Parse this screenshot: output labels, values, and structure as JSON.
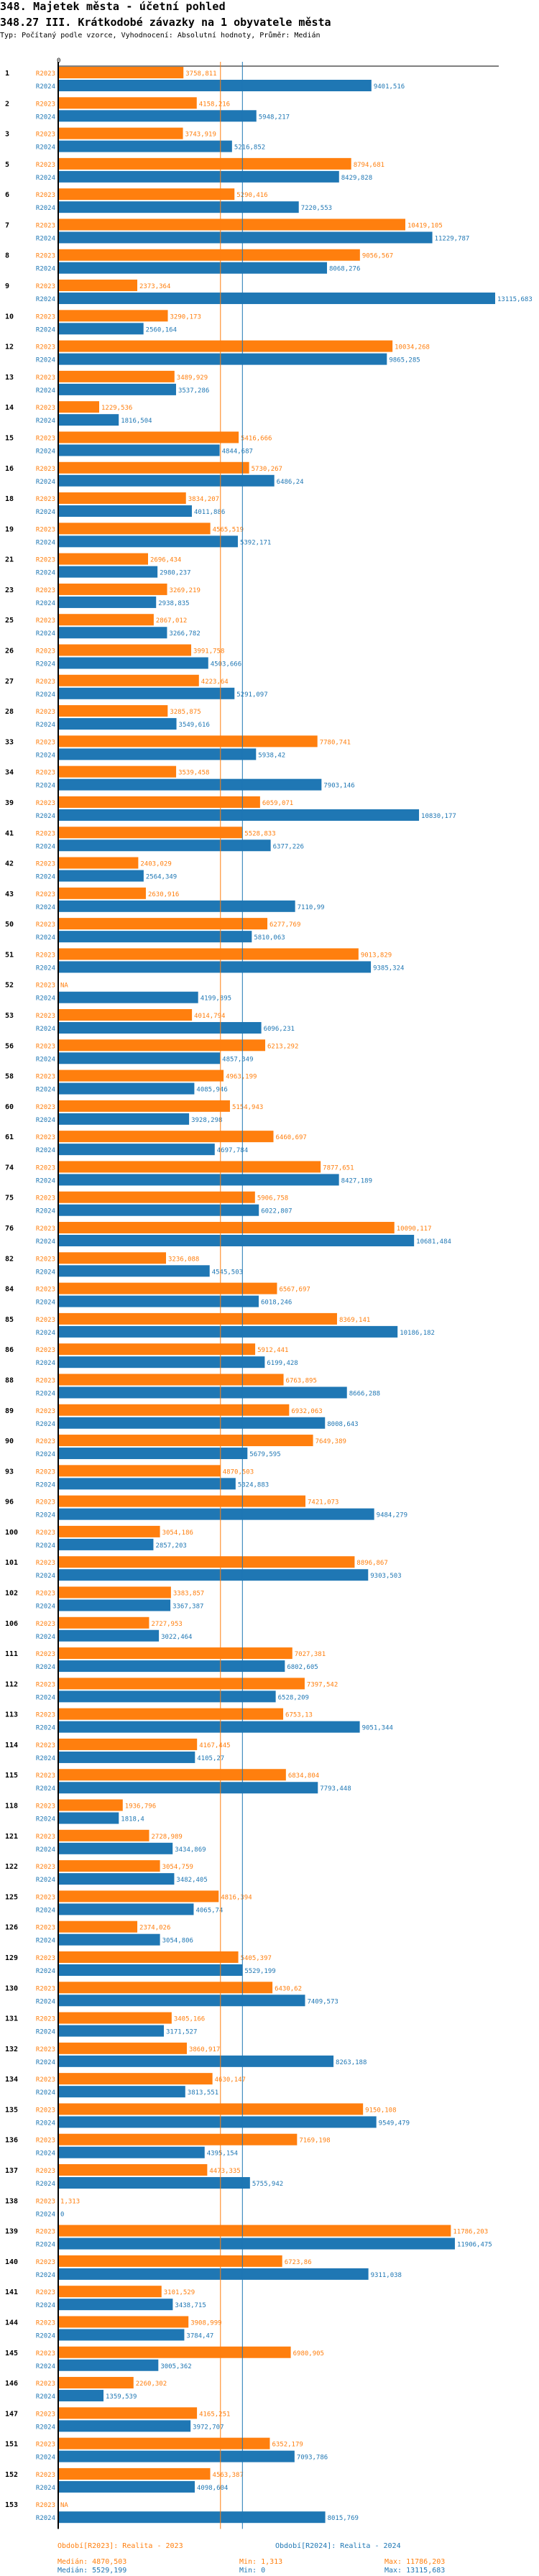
{
  "header": {
    "title": "348. Majetek města - účetní pohled",
    "subtitle": "348.27 III. Krátkodobé závazky na 1 obyvatele města",
    "description": "Typ: Počítaný podle vzorce, Vyhodnocení: Absolutní hodnoty, Průměr: Medián"
  },
  "colors": {
    "R2023": "#ff7f0e",
    "R2024": "#1f77b4",
    "axis": "#000000"
  },
  "chart_data": {
    "type": "bar",
    "orientation": "horizontal",
    "title": "348.27 III. Krátkodobé závazky na 1 obyvatele města",
    "xlabel": "",
    "ylabel": "",
    "x_tick_labels": [
      "0"
    ],
    "xlim": [
      0,
      13115.683
    ],
    "legend_position": "bottom",
    "series_names": [
      "R2023",
      "R2024"
    ],
    "categories": [
      "1",
      "2",
      "3",
      "5",
      "6",
      "7",
      "8",
      "9",
      "10",
      "12",
      "13",
      "14",
      "15",
      "16",
      "18",
      "19",
      "21",
      "23",
      "25",
      "26",
      "27",
      "28",
      "33",
      "34",
      "39",
      "41",
      "42",
      "43",
      "50",
      "51",
      "52",
      "53",
      "56",
      "58",
      "60",
      "61",
      "74",
      "75",
      "76",
      "82",
      "84",
      "85",
      "86",
      "88",
      "89",
      "90",
      "93",
      "96",
      "100",
      "101",
      "102",
      "106",
      "111",
      "112",
      "113",
      "114",
      "115",
      "118",
      "121",
      "122",
      "125",
      "126",
      "129",
      "130",
      "131",
      "132",
      "134",
      "135",
      "136",
      "137",
      "138",
      "139",
      "140",
      "141",
      "144",
      "145",
      "146",
      "147",
      "151",
      "152",
      "153"
    ],
    "series": [
      {
        "name": "R2023",
        "values": [
          3758.811,
          4158.216,
          3743.919,
          8794.681,
          5290.416,
          10419.105,
          9056.567,
          2373.364,
          3290.173,
          10034.268,
          3489.929,
          1229.536,
          5416.666,
          5730.267,
          3834.207,
          4565.519,
          2696.434,
          3269.219,
          2867.012,
          3991.758,
          4223.64,
          3285.875,
          7780.741,
          3539.458,
          6059.071,
          5528.833,
          2403.029,
          2630.916,
          6277.769,
          9013.829,
          null,
          4014.794,
          6213.292,
          4963.199,
          5154.943,
          6460.697,
          7877.651,
          5906.758,
          10090.117,
          3236.088,
          6567.697,
          8369.141,
          5912.441,
          6763.895,
          6932.063,
          7649.389,
          4870.503,
          7421.073,
          3054.186,
          8896.867,
          3383.857,
          2727.953,
          7027.381,
          7397.542,
          6753.13,
          4167.445,
          6834.804,
          1936.796,
          2728.989,
          3054.759,
          4816.394,
          2374.026,
          5405.397,
          6430.62,
          3405.166,
          3860.917,
          4630.147,
          9150.108,
          7169.198,
          4473.335,
          1.313,
          11786.203,
          6723.86,
          3101.529,
          3908.999,
          6980.905,
          2260.302,
          4165.251,
          6352.179,
          4563.387,
          null
        ],
        "labels": [
          "3758,811",
          "4158,216",
          "3743,919",
          "8794,681",
          "5290,416",
          "10419,105",
          "9056,567",
          "2373,364",
          "3290,173",
          "10034,268",
          "3489,929",
          "1229,536",
          "5416,666",
          "5730,267",
          "3834,207",
          "4565,519",
          "2696,434",
          "3269,219",
          "2867,012",
          "3991,758",
          "4223,64",
          "3285,875",
          "7780,741",
          "3539,458",
          "6059,071",
          "5528,833",
          "2403,029",
          "2630,916",
          "6277,769",
          "9013,829",
          "NA",
          "4014,794",
          "6213,292",
          "4963,199",
          "5154,943",
          "6460,697",
          "7877,651",
          "5906,758",
          "10090,117",
          "3236,088",
          "6567,697",
          "8369,141",
          "5912,441",
          "6763,895",
          "6932,063",
          "7649,389",
          "4870,503",
          "7421,073",
          "3054,186",
          "8896,867",
          "3383,857",
          "2727,953",
          "7027,381",
          "7397,542",
          "6753,13",
          "4167,445",
          "6834,804",
          "1936,796",
          "2728,989",
          "3054,759",
          "4816,394",
          "2374,026",
          "5405,397",
          "6430,62",
          "3405,166",
          "3860,917",
          "4630,147",
          "9150,108",
          "7169,198",
          "4473,335",
          "1,313",
          "11786,203",
          "6723,86",
          "3101,529",
          "3908,999",
          "6980,905",
          "2260,302",
          "4165,251",
          "6352,179",
          "4563,387",
          "NA"
        ]
      },
      {
        "name": "R2024",
        "values": [
          9401.516,
          5948.217,
          5216.852,
          8429.828,
          7220.553,
          11229.787,
          8068.276,
          13115.683,
          2560.164,
          9865.285,
          3537.286,
          1816.504,
          4844.687,
          6486.24,
          4011.886,
          5392.171,
          2980.237,
          2938.835,
          3266.782,
          4503.666,
          5291.097,
          3549.616,
          5938.42,
          7903.146,
          10830.177,
          6377.226,
          2564.349,
          7110.99,
          5810.063,
          9385.324,
          4199.895,
          6096.231,
          4857.349,
          4085.946,
          3928.298,
          4697.784,
          8427.189,
          6022.807,
          10681.484,
          4545.503,
          6018.246,
          10186.182,
          6199.428,
          8666.288,
          8008.643,
          5679.595,
          5324.883,
          9484.279,
          2857.203,
          9303.503,
          3367.387,
          3022.464,
          6802.605,
          6528.209,
          9051.344,
          4105.27,
          7793.448,
          1818.4,
          3434.869,
          3482.405,
          4065.74,
          3054.806,
          5529.199,
          7409.573,
          3171.527,
          8263.188,
          3813.551,
          9549.479,
          4395.154,
          5755.942,
          0,
          11906.475,
          9311.038,
          3438.715,
          3784.47,
          3005.362,
          1359.539,
          3972.707,
          7093.786,
          4098.604,
          8015.769
        ],
        "labels": [
          "9401,516",
          "5948,217",
          "5216,852",
          "8429,828",
          "7220,553",
          "11229,787",
          "8068,276",
          "13115,683",
          "2560,164",
          "9865,285",
          "3537,286",
          "1816,504",
          "4844,687",
          "6486,24",
          "4011,886",
          "5392,171",
          "2980,237",
          "2938,835",
          "3266,782",
          "4503,666",
          "5291,097",
          "3549,616",
          "5938,42",
          "7903,146",
          "10830,177",
          "6377,226",
          "2564,349",
          "7110,99",
          "5810,063",
          "9385,324",
          "4199,895",
          "6096,231",
          "4857,349",
          "4085,946",
          "3928,298",
          "4697,784",
          "8427,189",
          "6022,807",
          "10681,484",
          "4545,503",
          "6018,246",
          "10186,182",
          "6199,428",
          "8666,288",
          "8008,643",
          "5679,595",
          "5324,883",
          "9484,279",
          "2857,203",
          "9303,503",
          "3367,387",
          "3022,464",
          "6802,605",
          "6528,209",
          "9051,344",
          "4105,27",
          "7793,448",
          "1818,4",
          "3434,869",
          "3482,405",
          "4065,74",
          "3054,806",
          "5529,199",
          "7409,573",
          "3171,527",
          "8263,188",
          "3813,551",
          "9549,479",
          "4395,154",
          "5755,942",
          "0",
          "11906,475",
          "9311,038",
          "3438,715",
          "3784,47",
          "3005,362",
          "1359,539",
          "3972,707",
          "7093,786",
          "4098,604",
          "8015,769"
        ]
      }
    ],
    "medians": {
      "R2023": 4870.503,
      "R2024": 5529.199
    }
  },
  "legend": {
    "R2023": {
      "period": "Období[R2023]: Realita - 2023",
      "median": "Medián: 4870,503",
      "min": "Min: 1,313",
      "max": "Max: 11786,203"
    },
    "R2024": {
      "period": "Období[R2024]: Realita - 2024",
      "median": "Medián: 5529,199",
      "min": "Min: 0",
      "max": "Max: 13115,683"
    }
  }
}
